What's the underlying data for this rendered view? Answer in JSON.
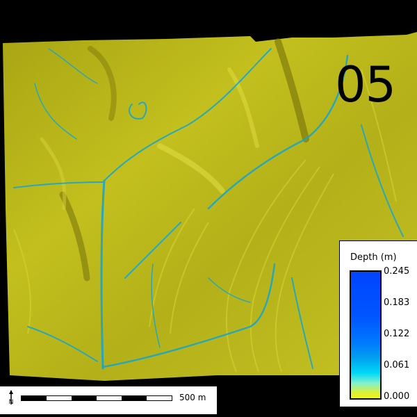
{
  "frame_label": "05",
  "scale_bar": {
    "label": "500 m",
    "north_icon": "north-arrow-icon"
  },
  "legend": {
    "title": "Depth (m)",
    "ticks": [
      "0.245",
      "0.183",
      "0.122",
      "0.061",
      "0.000"
    ],
    "colors": {
      "high": "#0044ff",
      "mid": "#00d8f8",
      "low": "#f2f210"
    }
  },
  "map": {
    "terrain_color": "#b8b418",
    "flow_color": "#1aa6c8"
  }
}
